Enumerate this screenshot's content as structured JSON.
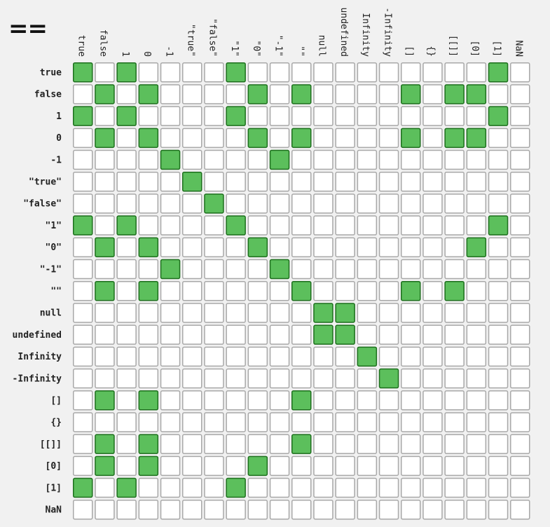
{
  "title": "==",
  "colors": {
    "background": "#f1f1f1",
    "true_fill": "#5cbf5c",
    "true_stroke": "#1d6f1d",
    "false_fill": "#ffffff",
    "false_stroke": "#a8a8a8"
  },
  "chart_data": {
    "type": "heatmap",
    "title": "==",
    "labels": [
      "true",
      "false",
      "1",
      "0",
      "-1",
      "\"true\"",
      "\"false\"",
      "\"1\"",
      "\"0\"",
      "\"-1\"",
      "\"\"",
      "null",
      "undefined",
      "Infinity",
      "-Infinity",
      "[]",
      "{}",
      "[[]]",
      "[0]",
      "[1]",
      "NaN"
    ],
    "matrix": [
      [
        1,
        0,
        1,
        0,
        0,
        0,
        0,
        1,
        0,
        0,
        0,
        0,
        0,
        0,
        0,
        0,
        0,
        0,
        0,
        1,
        0
      ],
      [
        0,
        1,
        0,
        1,
        0,
        0,
        0,
        0,
        1,
        0,
        1,
        0,
        0,
        0,
        0,
        1,
        0,
        1,
        1,
        0,
        0
      ],
      [
        1,
        0,
        1,
        0,
        0,
        0,
        0,
        1,
        0,
        0,
        0,
        0,
        0,
        0,
        0,
        0,
        0,
        0,
        0,
        1,
        0
      ],
      [
        0,
        1,
        0,
        1,
        0,
        0,
        0,
        0,
        1,
        0,
        1,
        0,
        0,
        0,
        0,
        1,
        0,
        1,
        1,
        0,
        0
      ],
      [
        0,
        0,
        0,
        0,
        1,
        0,
        0,
        0,
        0,
        1,
        0,
        0,
        0,
        0,
        0,
        0,
        0,
        0,
        0,
        0,
        0
      ],
      [
        0,
        0,
        0,
        0,
        0,
        1,
        0,
        0,
        0,
        0,
        0,
        0,
        0,
        0,
        0,
        0,
        0,
        0,
        0,
        0,
        0
      ],
      [
        0,
        0,
        0,
        0,
        0,
        0,
        1,
        0,
        0,
        0,
        0,
        0,
        0,
        0,
        0,
        0,
        0,
        0,
        0,
        0,
        0
      ],
      [
        1,
        0,
        1,
        0,
        0,
        0,
        0,
        1,
        0,
        0,
        0,
        0,
        0,
        0,
        0,
        0,
        0,
        0,
        0,
        1,
        0
      ],
      [
        0,
        1,
        0,
        1,
        0,
        0,
        0,
        0,
        1,
        0,
        0,
        0,
        0,
        0,
        0,
        0,
        0,
        0,
        1,
        0,
        0
      ],
      [
        0,
        0,
        0,
        0,
        1,
        0,
        0,
        0,
        0,
        1,
        0,
        0,
        0,
        0,
        0,
        0,
        0,
        0,
        0,
        0,
        0
      ],
      [
        0,
        1,
        0,
        1,
        0,
        0,
        0,
        0,
        0,
        0,
        1,
        0,
        0,
        0,
        0,
        1,
        0,
        1,
        0,
        0,
        0
      ],
      [
        0,
        0,
        0,
        0,
        0,
        0,
        0,
        0,
        0,
        0,
        0,
        1,
        1,
        0,
        0,
        0,
        0,
        0,
        0,
        0,
        0
      ],
      [
        0,
        0,
        0,
        0,
        0,
        0,
        0,
        0,
        0,
        0,
        0,
        1,
        1,
        0,
        0,
        0,
        0,
        0,
        0,
        0,
        0
      ],
      [
        0,
        0,
        0,
        0,
        0,
        0,
        0,
        0,
        0,
        0,
        0,
        0,
        0,
        1,
        0,
        0,
        0,
        0,
        0,
        0,
        0
      ],
      [
        0,
        0,
        0,
        0,
        0,
        0,
        0,
        0,
        0,
        0,
        0,
        0,
        0,
        0,
        1,
        0,
        0,
        0,
        0,
        0,
        0
      ],
      [
        0,
        1,
        0,
        1,
        0,
        0,
        0,
        0,
        0,
        0,
        1,
        0,
        0,
        0,
        0,
        0,
        0,
        0,
        0,
        0,
        0
      ],
      [
        0,
        0,
        0,
        0,
        0,
        0,
        0,
        0,
        0,
        0,
        0,
        0,
        0,
        0,
        0,
        0,
        0,
        0,
        0,
        0,
        0
      ],
      [
        0,
        1,
        0,
        1,
        0,
        0,
        0,
        0,
        0,
        0,
        1,
        0,
        0,
        0,
        0,
        0,
        0,
        0,
        0,
        0,
        0
      ],
      [
        0,
        1,
        0,
        1,
        0,
        0,
        0,
        0,
        1,
        0,
        0,
        0,
        0,
        0,
        0,
        0,
        0,
        0,
        0,
        0,
        0
      ],
      [
        1,
        0,
        1,
        0,
        0,
        0,
        0,
        1,
        0,
        0,
        0,
        0,
        0,
        0,
        0,
        0,
        0,
        0,
        0,
        0,
        0
      ],
      [
        0,
        0,
        0,
        0,
        0,
        0,
        0,
        0,
        0,
        0,
        0,
        0,
        0,
        0,
        0,
        0,
        0,
        0,
        0,
        0,
        0
      ]
    ]
  }
}
